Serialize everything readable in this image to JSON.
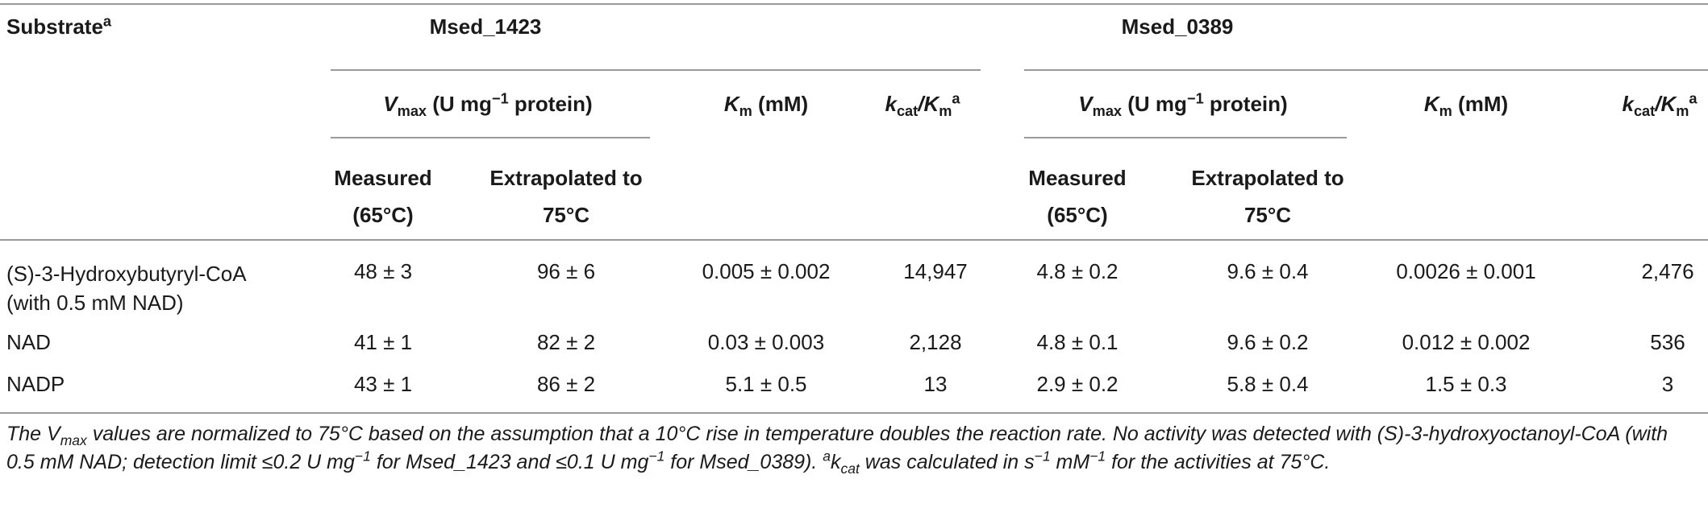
{
  "table": {
    "col_substrate": "Substrate",
    "col_substrate_sup": "a",
    "group1": "Msed_1423",
    "group2": "Msed_0389",
    "vmax_label_v": "V",
    "vmax_label_sub": "max",
    "vmax_label_rest": " (U mg",
    "vmax_label_sup": "−1",
    "vmax_label_end": " protein)",
    "km_label_k": "K",
    "km_label_sub": "m",
    "km_label_rest": " (mM)",
    "kcat_label_k": "k",
    "kcat_label_sub": "cat",
    "kcat_label_slash": "/K",
    "kcat_label_sub2": "m",
    "kcat_label_sup": "a",
    "measured_line1": "Measured",
    "measured_line2": "(65°C)",
    "extrap_line1": "Extrapolated to",
    "extrap_line2": "75°C",
    "rows": [
      {
        "substrate_line1": "(S)-3-Hydroxybutyryl-CoA",
        "substrate_line2": "(with 0.5 mM NAD)",
        "m1_measured": "48 ± 3",
        "m1_extrap": "96 ± 6",
        "m1_km": "0.005 ± 0.002",
        "m1_kcat": "14,947",
        "m2_measured": "4.8 ± 0.2",
        "m2_extrap": "9.6 ± 0.4",
        "m2_km": "0.0026 ± 0.001",
        "m2_kcat": "2,476"
      },
      {
        "substrate_line1": "NAD",
        "substrate_line2": "",
        "m1_measured": "41 ± 1",
        "m1_extrap": "82 ± 2",
        "m1_km": "0.03 ± 0.003",
        "m1_kcat": "2,128",
        "m2_measured": "4.8 ± 0.1",
        "m2_extrap": "9.6 ± 0.2",
        "m2_km": "0.012 ± 0.002",
        "m2_kcat": "536"
      },
      {
        "substrate_line1": "NADP",
        "substrate_line2": "",
        "m1_measured": "43 ± 1",
        "m1_extrap": "86 ± 2",
        "m1_km": "5.1 ± 0.5",
        "m1_kcat": "13",
        "m2_measured": "2.9 ± 0.2",
        "m2_extrap": "5.8 ± 0.4",
        "m2_km": "1.5 ± 0.3",
        "m2_kcat": "3"
      }
    ]
  },
  "footnote": {
    "p1": "The V",
    "p1_sub": "max",
    "p2": " values are normalized to 75°C based on the assumption that a 10°C rise in temperature doubles the reaction rate. No activity was detected with (S)-3-hydroxyoctanoyl-CoA (with 0.5 mM NAD; detection limit ≤0.2 U mg",
    "p2_sup": "−1",
    "p3": " for Msed_1423 and ≤0.1 U mg",
    "p3_sup": "−1",
    "p4": " for Msed_0389). ",
    "p4_sup": "a",
    "p5": "k",
    "p5_sub": "cat",
    "p6": " was calculated in s",
    "p6_sup": "−1",
    "p7": " mM",
    "p7_sup": "−1",
    "p8": " for the activities at 75°C."
  }
}
